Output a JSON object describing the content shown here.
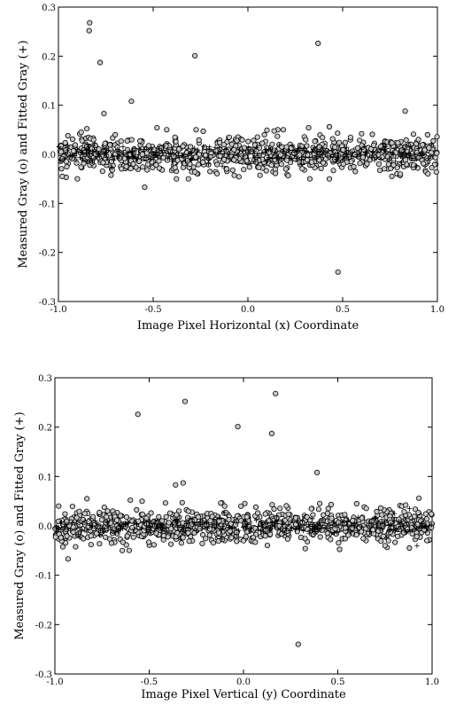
{
  "chart_data": [
    {
      "type": "scatter",
      "title": "",
      "xlabel": "Image Pixel Horizontal (x) Coordinate",
      "ylabel": "Measured Gray (o) and Fitted Gray (+)",
      "xlim": [
        -1.0,
        1.0
      ],
      "ylim": [
        -0.3,
        0.3
      ],
      "xticks": [
        -1.0,
        -0.5,
        0.0,
        0.5,
        1.0
      ],
      "xtick_labels": [
        "-1.0",
        "-0.5",
        "0.0",
        "0.5",
        "1.0"
      ],
      "yticks": [
        -0.3,
        -0.2,
        -0.1,
        0.0,
        0.1,
        0.2,
        0.3
      ],
      "ytick_labels": [
        "-0.3",
        "-0.2",
        "-0.1",
        "0.0",
        "0.1",
        "0.2",
        "0.3"
      ],
      "grid": false,
      "series": [
        {
          "marker": "o",
          "points": [
            [
              -0.835,
              0.268
            ],
            [
              -0.838,
              0.252
            ],
            [
              -0.78,
              0.187
            ],
            [
              -0.615,
              0.108
            ],
            [
              -0.76,
              0.083
            ],
            [
              -0.28,
              0.201
            ],
            [
              0.37,
              0.226
            ],
            [
              0.83,
              0.088
            ],
            [
              0.475,
              -0.24
            ],
            [
              -0.545,
              -0.067
            ],
            [
              -0.95,
              0.038
            ],
            [
              -0.88,
              0.045
            ],
            [
              -0.85,
              0.052
            ],
            [
              -0.48,
              0.054
            ],
            [
              0.32,
              0.054
            ],
            [
              0.43,
              0.056
            ],
            [
              -0.98,
              -0.045
            ],
            [
              -0.9,
              -0.05
            ],
            [
              0.76,
              -0.045
            ],
            [
              0.95,
              -0.04
            ],
            [
              -0.7,
              0.04
            ],
            [
              0.05,
              0.035
            ],
            [
              0.6,
              0.042
            ],
            [
              -0.2,
              -0.035
            ],
            [
              0.2,
              -0.03
            ],
            [
              0.9,
              0.03
            ]
          ]
        },
        {
          "marker": "+",
          "points": [
            [
              -0.95,
              0.018
            ],
            [
              -0.9,
              0.01
            ],
            [
              -0.85,
              0.008
            ],
            [
              -0.75,
              0.0
            ],
            [
              -0.6,
              -0.005
            ],
            [
              -0.45,
              0.002
            ],
            [
              -0.3,
              -0.01
            ],
            [
              -0.15,
              0.005
            ],
            [
              0.0,
              0.0
            ],
            [
              0.15,
              -0.008
            ],
            [
              0.3,
              0.012
            ],
            [
              0.45,
              0.0
            ],
            [
              0.6,
              0.01
            ],
            [
              0.75,
              0.005
            ],
            [
              0.9,
              0.012
            ],
            [
              0.97,
              0.02
            ]
          ]
        }
      ]
    },
    {
      "type": "scatter",
      "title": "",
      "xlabel": "Image Pixel Vertical (y)  Coordinate",
      "ylabel": "Measured Gray (o) and Fitted Gray (+)",
      "xlim": [
        -1.0,
        1.0
      ],
      "ylim": [
        -0.3,
        0.3
      ],
      "xticks": [
        -1.0,
        -0.5,
        0.0,
        0.5,
        1.0
      ],
      "xtick_labels": [
        "-1.0",
        "-0.5",
        "0.0",
        "0.5",
        "1.0"
      ],
      "yticks": [
        -0.3,
        -0.2,
        -0.1,
        0.0,
        0.1,
        0.2,
        0.3
      ],
      "ytick_labels": [
        "-0.3",
        "-0.2",
        "-0.1",
        "0.0",
        "0.1",
        "0.2",
        "0.3"
      ],
      "grid": false,
      "series": [
        {
          "marker": "o",
          "points": [
            [
              -0.56,
              0.226
            ],
            [
              -0.31,
              0.252
            ],
            [
              -0.03,
              0.201
            ],
            [
              0.17,
              0.268
            ],
            [
              0.15,
              0.187
            ],
            [
              0.39,
              0.108
            ],
            [
              -0.32,
              0.087
            ],
            [
              -0.36,
              0.083
            ],
            [
              -0.83,
              0.055
            ],
            [
              0.29,
              -0.24
            ],
            [
              -0.93,
              -0.067
            ],
            [
              0.93,
              0.056
            ],
            [
              0.86,
              0.042
            ],
            [
              -0.98,
              0.04
            ],
            [
              -0.6,
              0.052
            ],
            [
              0.6,
              0.045
            ],
            [
              -0.7,
              -0.035
            ],
            [
              0.75,
              -0.04
            ],
            [
              0.88,
              -0.045
            ],
            [
              0.0,
              -0.03
            ],
            [
              -0.1,
              0.04
            ],
            [
              0.45,
              0.035
            ]
          ]
        },
        {
          "marker": "+",
          "points": [
            [
              -0.97,
              0.005
            ],
            [
              -0.8,
              0.0
            ],
            [
              -0.65,
              -0.005
            ],
            [
              -0.5,
              0.01
            ],
            [
              -0.35,
              0.012
            ],
            [
              -0.2,
              0.008
            ],
            [
              -0.05,
              -0.005
            ],
            [
              0.1,
              0.0
            ],
            [
              0.25,
              -0.01
            ],
            [
              0.4,
              0.005
            ],
            [
              0.55,
              0.01
            ],
            [
              0.7,
              0.015
            ],
            [
              0.8,
              0.025
            ],
            [
              0.88,
              0.035
            ],
            [
              0.92,
              -0.04
            ],
            [
              0.97,
              0.0
            ]
          ]
        }
      ]
    }
  ]
}
